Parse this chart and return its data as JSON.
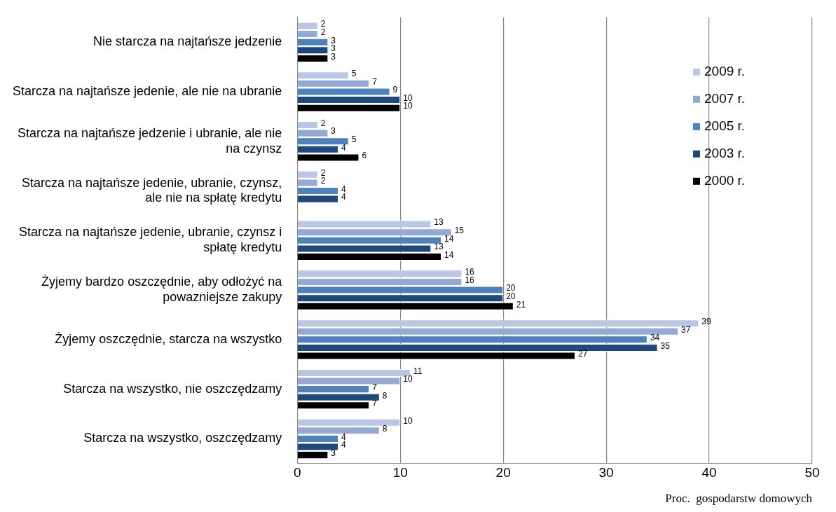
{
  "chart_data": {
    "type": "bar",
    "orientation": "horizontal",
    "xlabel": "Proc.  gospodarstw domowych",
    "categories": [
      "Nie starcza na najtańsze jedzenie",
      "Starcza na najtańsze jedenie, ale nie na ubranie",
      "Starcza na najtańsze jedzenie i ubranie, ale nie na czynsz",
      "Starcza na najtańsze jedenie, ubranie, czynsz, ale nie na spłatę kredytu",
      "Starcza na najtańsze jedenie, ubranie, czynsz i spłatę kredytu",
      "Żyjemy bardzo oszczędnie, aby odłożyć na powazniejsze zakupy",
      "Żyjemy oszczędnie, starcza na wszystko",
      "Starcza na wszystko, nie oszczędzamy",
      "Starcza na wszystko, oszczędzamy"
    ],
    "series": [
      {
        "name": "2009 r.",
        "color": "#b9c7e4",
        "values": [
          2,
          5,
          2,
          2,
          13,
          16,
          39,
          11,
          10
        ]
      },
      {
        "name": "2007 r.",
        "color": "#94a9d4",
        "values": [
          2,
          7,
          3,
          2,
          15,
          16,
          37,
          10,
          8
        ]
      },
      {
        "name": "2005 r.",
        "color": "#4f81bd",
        "values": [
          3,
          9,
          5,
          4,
          14,
          20,
          34,
          7,
          4
        ]
      },
      {
        "name": "2003 r.",
        "color": "#1f497d",
        "values": [
          3,
          10,
          4,
          4,
          13,
          20,
          35,
          8,
          4
        ]
      },
      {
        "name": "2000 r.",
        "color": "#000000",
        "values": [
          3,
          10,
          6,
          null,
          14,
          21,
          27,
          7,
          3
        ]
      }
    ],
    "xlim": [
      0,
      50
    ],
    "xticks": [
      0,
      10,
      20,
      30,
      40,
      50
    ],
    "grid": "x",
    "legend": "top right",
    "data_labels": true
  }
}
